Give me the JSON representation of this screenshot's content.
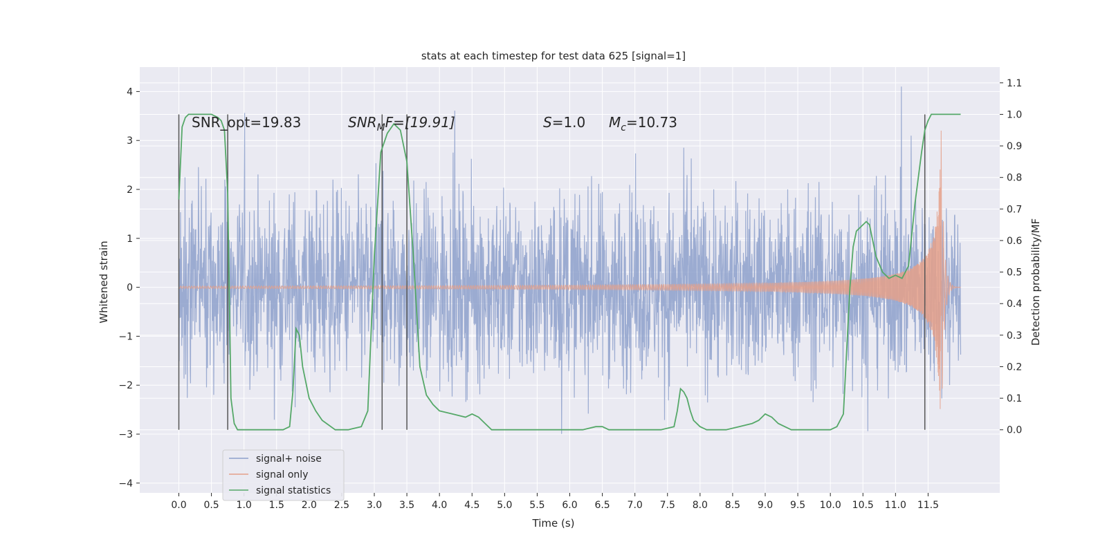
{
  "chart_data": {
    "type": "line",
    "title": "stats at each timestep for test data 625 [signal=1]",
    "xlabel": "Time (s)",
    "ylabel_left": "Whitened strain",
    "ylabel_right": "Detection probability/MF",
    "xlim": [
      -0.6,
      12.6
    ],
    "ylim_left": [
      -4.2,
      4.5
    ],
    "ylim_right": [
      -0.2,
      1.15
    ],
    "x_ticks": [
      "0.0",
      "0.5",
      "1.0",
      "1.5",
      "2.0",
      "2.5",
      "3.0",
      "3.5",
      "4.0",
      "4.5",
      "5.0",
      "5.5",
      "6.0",
      "6.5",
      "7.0",
      "7.5",
      "8.0",
      "8.5",
      "9.0",
      "9.5",
      "10.0",
      "10.5",
      "11.0",
      "11.5"
    ],
    "y_ticks_left": [
      "4",
      "3",
      "2",
      "1",
      "0",
      "−1",
      "−2",
      "−3",
      "−4"
    ],
    "y_ticks_right": [
      "1.1",
      "1.0",
      "0.9",
      "0.8",
      "0.7",
      "0.6",
      "0.5",
      "0.4",
      "0.3",
      "0.2",
      "0.1",
      "0.0"
    ],
    "grid": true,
    "legend_position": "bottom-left",
    "annotations": {
      "snr_opt": "SNR_opt=19.83",
      "snr_mf_main": "SNR",
      "snr_mf_sub": "M",
      "snr_mf_rest": "F=[19.91]",
      "s_var": "S",
      "s_rest": "=1.0",
      "mc_var": "M",
      "mc_sub": "c",
      "mc_rest": "=10.73"
    },
    "series": [
      {
        "name": "signal+ noise",
        "color": "#8da0cb",
        "axis": "left",
        "noise_band": [
          -3.0,
          3.0
        ],
        "x_range": [
          0.0,
          12.0
        ]
      },
      {
        "name": "signal only",
        "color": "#e5a08a",
        "axis": "left",
        "chirp_peak_time": 11.7,
        "chirp_peak_amp": 3.2
      },
      {
        "name": "signal statistics",
        "color": "#55a868",
        "axis": "right",
        "x": [
          0.0,
          0.05,
          0.1,
          0.15,
          0.2,
          0.3,
          0.4,
          0.5,
          0.6,
          0.65,
          0.7,
          0.75,
          0.8,
          0.85,
          0.9,
          1.0,
          1.1,
          1.2,
          1.4,
          1.6,
          1.7,
          1.75,
          1.8,
          1.85,
          1.9,
          2.0,
          2.1,
          2.2,
          2.4,
          2.5,
          2.6,
          2.8,
          2.9,
          3.0,
          3.1,
          3.2,
          3.3,
          3.4,
          3.5,
          3.6,
          3.7,
          3.8,
          3.9,
          4.0,
          4.2,
          4.4,
          4.5,
          4.6,
          4.7,
          4.8,
          5.0,
          5.2,
          5.4,
          5.6,
          5.8,
          6.0,
          6.2,
          6.4,
          6.5,
          6.6,
          6.8,
          7.0,
          7.2,
          7.4,
          7.6,
          7.65,
          7.7,
          7.75,
          7.8,
          7.85,
          7.9,
          8.0,
          8.1,
          8.2,
          8.4,
          8.6,
          8.8,
          8.9,
          9.0,
          9.1,
          9.2,
          9.4,
          9.6,
          9.8,
          10.0,
          10.1,
          10.2,
          10.25,
          10.3,
          10.35,
          10.4,
          10.5,
          10.55,
          10.6,
          10.65,
          10.7,
          10.8,
          10.9,
          11.0,
          11.1,
          11.2,
          11.3,
          11.4,
          11.45,
          11.5,
          11.55,
          11.6,
          11.7,
          11.8,
          11.9,
          12.0
        ],
        "y": [
          0.73,
          0.96,
          0.99,
          1.0,
          1.0,
          1.0,
          1.0,
          1.0,
          0.99,
          0.98,
          0.95,
          0.75,
          0.1,
          0.02,
          0.0,
          0.0,
          0.0,
          0.0,
          0.0,
          0.0,
          0.01,
          0.12,
          0.32,
          0.3,
          0.2,
          0.1,
          0.06,
          0.03,
          0.0,
          0.0,
          0.0,
          0.01,
          0.06,
          0.55,
          0.88,
          0.94,
          0.97,
          0.95,
          0.85,
          0.55,
          0.2,
          0.11,
          0.08,
          0.06,
          0.05,
          0.04,
          0.05,
          0.04,
          0.02,
          0.0,
          0.0,
          0.0,
          0.0,
          0.0,
          0.0,
          0.0,
          0.0,
          0.01,
          0.01,
          0.0,
          0.0,
          0.0,
          0.0,
          0.0,
          0.01,
          0.06,
          0.13,
          0.12,
          0.1,
          0.06,
          0.03,
          0.01,
          0.0,
          0.0,
          0.0,
          0.01,
          0.02,
          0.03,
          0.05,
          0.04,
          0.02,
          0.0,
          0.0,
          0.0,
          0.0,
          0.01,
          0.05,
          0.25,
          0.45,
          0.58,
          0.63,
          0.65,
          0.66,
          0.65,
          0.6,
          0.55,
          0.5,
          0.48,
          0.49,
          0.48,
          0.52,
          0.72,
          0.88,
          0.95,
          0.98,
          1.0,
          1.0,
          1.0,
          1.0,
          1.0,
          1.0
        ]
      }
    ],
    "vlines": [
      0.0,
      0.75,
      3.12,
      3.5,
      11.45
    ]
  }
}
